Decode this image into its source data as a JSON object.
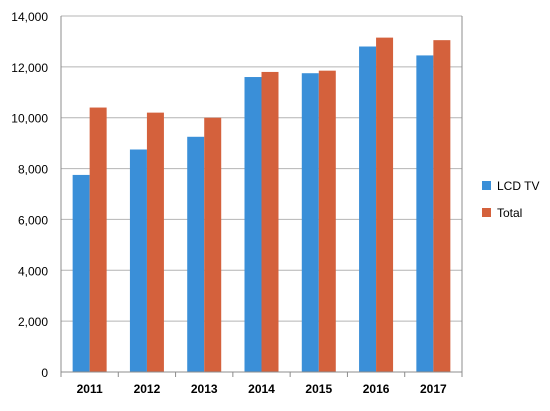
{
  "chart_data": {
    "type": "bar",
    "categories": [
      "2011",
      "2012",
      "2013",
      "2014",
      "2015",
      "2016",
      "2017"
    ],
    "series": [
      {
        "name": "LCD TV",
        "values": [
          7750,
          8750,
          9250,
          11600,
          11750,
          12800,
          12450
        ]
      },
      {
        "name": "Total",
        "values": [
          10400,
          10200,
          10000,
          11800,
          11850,
          13150,
          13050
        ]
      }
    ],
    "title": "",
    "xlabel": "",
    "ylabel": "",
    "ylim": [
      0,
      14000
    ],
    "yticks": [
      "0",
      "2,000",
      "4,000",
      "6,000",
      "8,000",
      "10,000",
      "12,000",
      "14,000"
    ],
    "grid": true,
    "legend": "right",
    "colors": {
      "LCD TV": "#3a8fd8",
      "Total": "#d4613c",
      "grid": "#b4b4b4",
      "axis": "#8c8c8c"
    }
  }
}
